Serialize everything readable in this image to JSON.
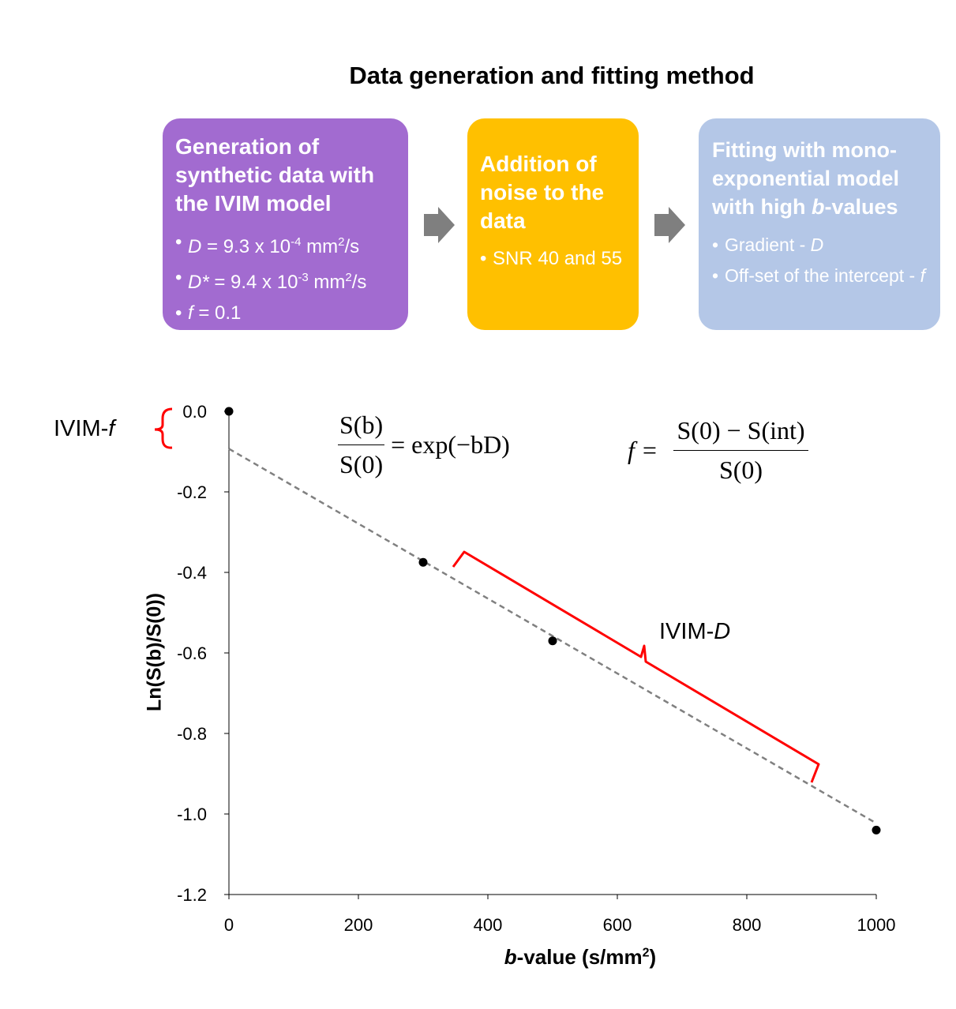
{
  "title": "Data generation and fitting method",
  "boxes": {
    "generation": {
      "header": "Generation of synthetic data with the IVIM model",
      "bullets": [
        {
          "sym": "D",
          "eq": " = 9.3 x 10",
          "exp": "-4",
          "unit": " mm",
          "unit_exp": "2",
          "tail": "/s"
        },
        {
          "sym": "D*",
          "eq": " = 9.4 x 10",
          "exp": "-3",
          "unit": " mm",
          "unit_exp": "2",
          "tail": "/s"
        },
        {
          "sym": "f",
          "eq": " = 0.1"
        }
      ],
      "color": "#a26bd0"
    },
    "noise": {
      "header": "Addition of noise to the data",
      "bullets": [
        "SNR 40 and 55"
      ],
      "color": "#ffc000"
    },
    "fitting": {
      "header_pre": "Fitting with mono-exponential model with high ",
      "header_italic": "b",
      "header_post": "-values",
      "bullet1_text": "Gradient - ",
      "bullet1_sym": "D",
      "bullet2_text": "Off-set of the intercept - ",
      "bullet2_sym": "f",
      "color": "#b4c7e7"
    }
  },
  "equations": {
    "ratio_num": "S(b)",
    "ratio_den": "S(0)",
    "ratio_rhs": "= exp(−bD)",
    "f_lhs": "f =",
    "f_num": "S(0) − S(int)",
    "f_den": "S(0)"
  },
  "annotations": {
    "ivim_f_prefix": "IVIM-",
    "ivim_f_sym": "f",
    "ivim_d_prefix": "IVIM-",
    "ivim_d_sym": "D",
    "bracket_color": "#ff0000"
  },
  "chart_data": {
    "type": "scatter",
    "x": [
      0,
      300,
      500,
      1000
    ],
    "y": [
      0.0,
      -0.375,
      -0.57,
      -1.04
    ],
    "fit_line": {
      "intercept": -0.093,
      "slope": -0.00093,
      "x_range": [
        0,
        1000
      ],
      "style": "dashed",
      "color": "#808080"
    },
    "xlim": [
      0,
      1000
    ],
    "ylim": [
      -1.2,
      0.0
    ],
    "xticks": [
      0,
      200,
      400,
      600,
      800,
      1000
    ],
    "yticks": [
      0.0,
      -0.2,
      -0.4,
      -0.6,
      -0.8,
      -1.0,
      -1.2
    ],
    "xtick_labels": [
      "0",
      "200",
      "400",
      "600",
      "800",
      "1000"
    ],
    "ytick_labels": [
      "0.0",
      "-0.2",
      "-0.4",
      "-0.6",
      "-0.8",
      "-1.0",
      "-1.2"
    ],
    "xlabel_italic": "b",
    "xlabel": "-value (s/mm",
    "xlabel_exp": "2",
    "xlabel_tail": ")",
    "ylabel": "Ln(S(b)/S(0))",
    "point_color": "#000000"
  }
}
